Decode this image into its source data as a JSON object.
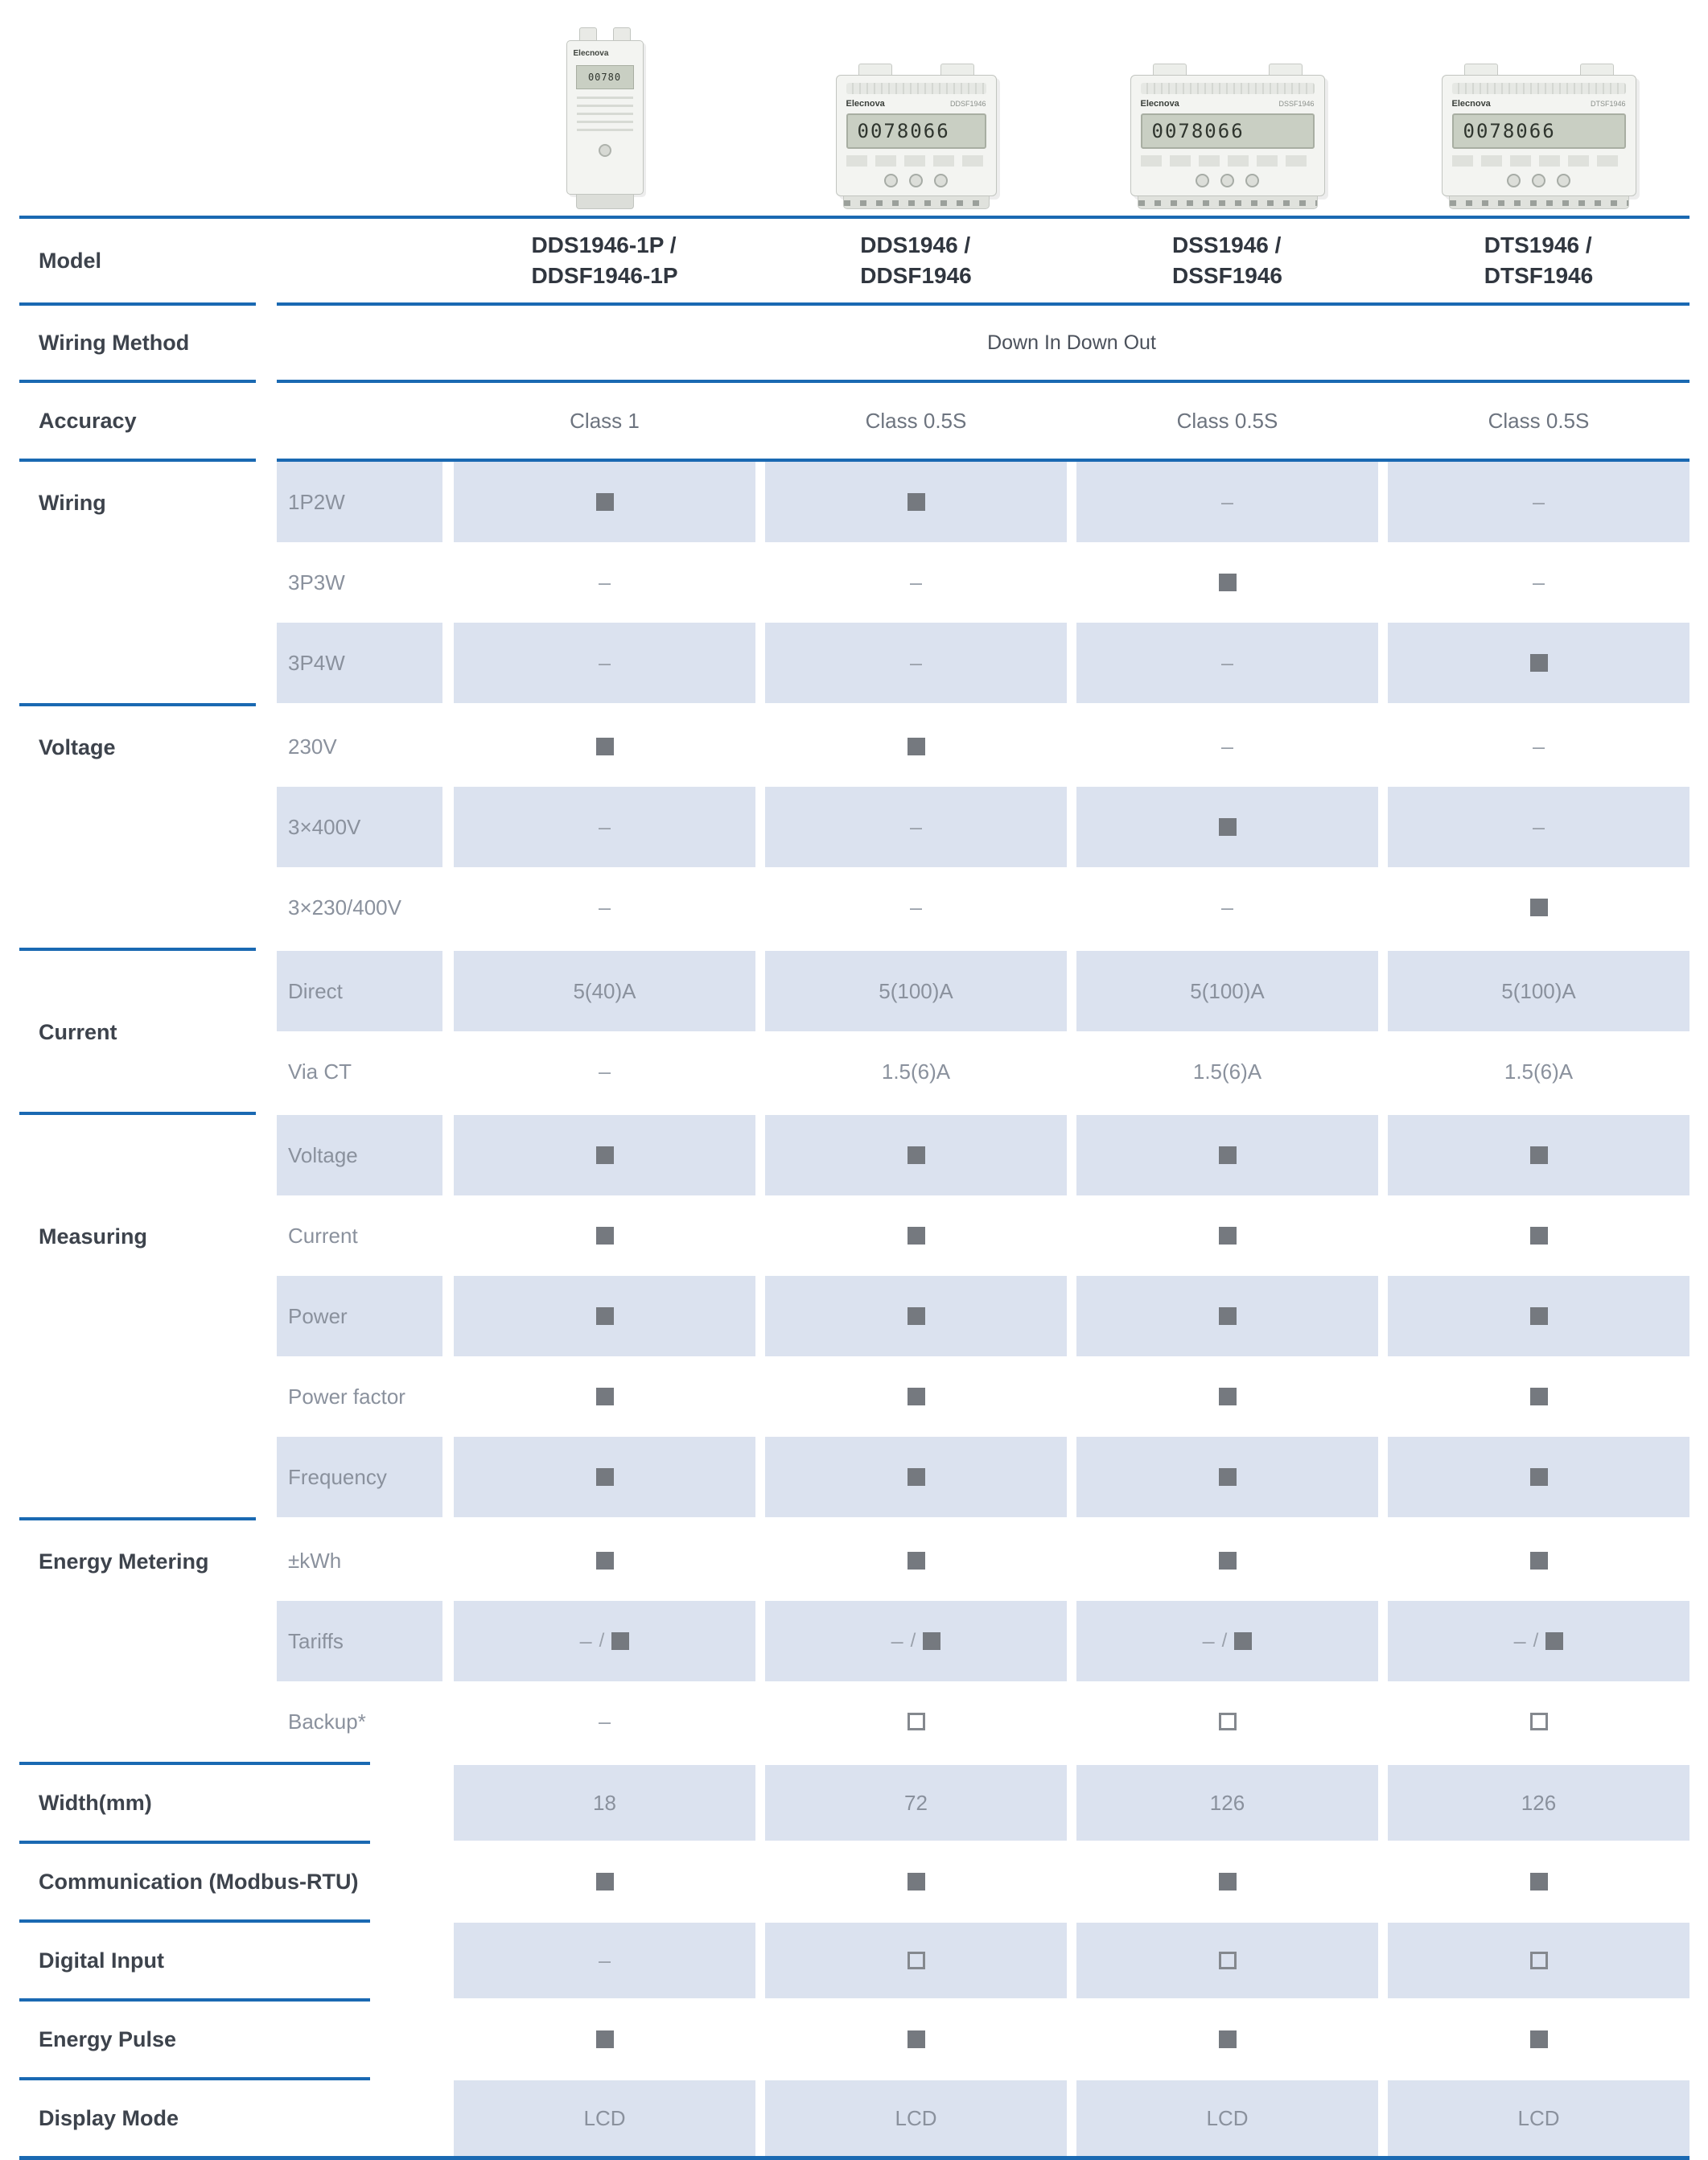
{
  "accent_color": "#1a69b2",
  "shade_color": "#dbe2ef",
  "products": [
    {
      "alt": "single module DIN rail energy meter",
      "brand": "Elecnova",
      "lcd": "00780"
    },
    {
      "alt": "four module DIN rail energy meter",
      "brand": "Elecnova",
      "code": "DDSF1946",
      "lcd": "0078066"
    },
    {
      "alt": "seven module DIN rail energy meter",
      "brand": "Elecnova",
      "code": "DSSF1946",
      "lcd": "0078066"
    },
    {
      "alt": "seven module DIN rail energy meter",
      "brand": "Elecnova",
      "code": "DTSF1946",
      "lcd": "0078066"
    }
  ],
  "model": {
    "label": "Model",
    "columns": [
      "DDS1946-1P /\nDDSF1946-1P",
      "DDS1946 /\nDDSF1946",
      "DSS1946 /\nDSSF1946",
      "DTS1946 /\nDTSF1946"
    ]
  },
  "wiring_method": {
    "label": "Wiring Method",
    "value": "Down In Down Out"
  },
  "accuracy": {
    "label": "Accuracy",
    "values": [
      "Class 1",
      "Class 0.5S",
      "Class 0.5S",
      "Class 0.5S"
    ]
  },
  "groups": {
    "wiring": {
      "label": "Wiring",
      "rows": [
        {
          "sub": "1P2W",
          "cells": [
            "filled",
            "filled",
            "dash",
            "dash"
          ]
        },
        {
          "sub": "3P3W",
          "cells": [
            "dash",
            "dash",
            "filled",
            "dash"
          ]
        },
        {
          "sub": "3P4W",
          "cells": [
            "dash",
            "dash",
            "dash",
            "filled"
          ]
        }
      ]
    },
    "voltage": {
      "label": "Voltage",
      "rows": [
        {
          "sub": "230V",
          "cells": [
            "filled",
            "filled",
            "dash",
            "dash"
          ]
        },
        {
          "sub": "3×400V",
          "cells": [
            "dash",
            "dash",
            "filled",
            "dash"
          ]
        },
        {
          "sub": "3×230/400V",
          "cells": [
            "dash",
            "dash",
            "dash",
            "filled"
          ]
        }
      ]
    },
    "current": {
      "label": "Current",
      "rows": [
        {
          "sub": "Direct",
          "cells": [
            "5(40)A",
            "5(100)A",
            "5(100)A",
            "5(100)A"
          ]
        },
        {
          "sub": "Via CT",
          "cells": [
            "dash",
            "1.5(6)A",
            "1.5(6)A",
            "1.5(6)A"
          ]
        }
      ]
    },
    "measuring": {
      "label": "Measuring",
      "rows": [
        {
          "sub": "Voltage",
          "cells": [
            "filled",
            "filled",
            "filled",
            "filled"
          ]
        },
        {
          "sub": "Current",
          "cells": [
            "filled",
            "filled",
            "filled",
            "filled"
          ]
        },
        {
          "sub": "Power",
          "cells": [
            "filled",
            "filled",
            "filled",
            "filled"
          ]
        },
        {
          "sub": "Power factor",
          "cells": [
            "filled",
            "filled",
            "filled",
            "filled"
          ]
        },
        {
          "sub": "Frequency",
          "cells": [
            "filled",
            "filled",
            "filled",
            "filled"
          ]
        }
      ]
    },
    "energy_metering": {
      "label": "Energy Metering",
      "rows": [
        {
          "sub": "±kWh",
          "cells": [
            "filled",
            "filled",
            "filled",
            "filled"
          ]
        },
        {
          "sub": "Tariffs",
          "cells": [
            "dash_filled",
            "dash_filled",
            "dash_filled",
            "dash_filled"
          ]
        },
        {
          "sub": "Backup*",
          "cells": [
            "dash",
            "empty",
            "empty",
            "empty"
          ]
        }
      ]
    }
  },
  "bottom_rows": [
    {
      "label": "Width(mm)",
      "cells": [
        "18",
        "72",
        "126",
        "126"
      ]
    },
    {
      "label": "Communication (Modbus-RTU)",
      "cells": [
        "filled",
        "filled",
        "filled",
        "filled"
      ]
    },
    {
      "label": "Digital Input",
      "cells": [
        "dash",
        "empty",
        "empty",
        "empty"
      ]
    },
    {
      "label": "Energy Pulse",
      "cells": [
        "filled",
        "filled",
        "filled",
        "filled"
      ]
    },
    {
      "label": "Display Mode",
      "cells": [
        "LCD",
        "LCD",
        "LCD",
        "LCD"
      ]
    }
  ]
}
